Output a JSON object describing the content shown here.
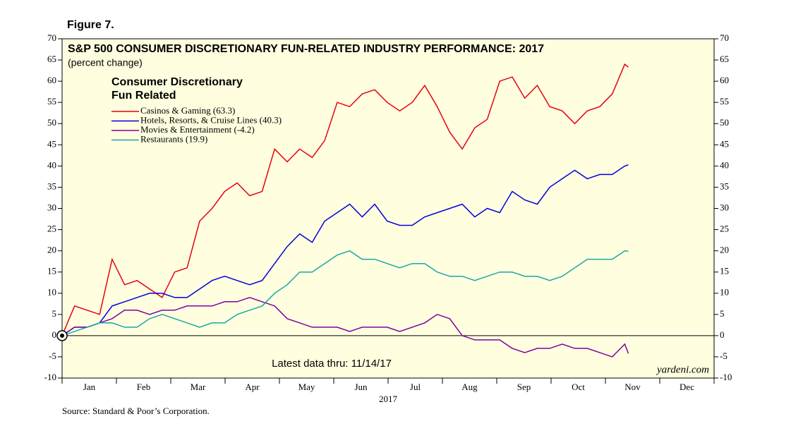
{
  "chart_data": {
    "type": "line",
    "figure_label": "Figure 7.",
    "title": "S&P 500 CONSUMER DISCRETIONARY FUN-RELATED INDUSTRY PERFORMANCE: 2017",
    "subtitle": "(percent change)",
    "legend_title": [
      "Consumer Discretionary",
      "Fun Related"
    ],
    "annotation": "Latest data thru: 11/14/17",
    "brand": "yardeni.com",
    "x_label": "2017",
    "source": "Source: Standard & Poor’s Corporation.",
    "categories": [
      "Jan",
      "Feb",
      "Mar",
      "Apr",
      "May",
      "Jun",
      "Jul",
      "Aug",
      "Sep",
      "Oct",
      "Nov",
      "Dec"
    ],
    "xlim": [
      0,
      365
    ],
    "x": [
      0,
      7,
      14,
      21,
      28,
      35,
      42,
      49,
      56,
      63,
      70,
      77,
      84,
      91,
      98,
      105,
      112,
      119,
      126,
      133,
      140,
      147,
      154,
      161,
      168,
      175,
      182,
      189,
      196,
      203,
      210,
      217,
      224,
      231,
      238,
      245,
      252,
      259,
      266,
      273,
      280,
      287,
      294,
      301,
      308,
      315,
      317
    ],
    "ylim": [
      -10,
      70
    ],
    "yticks": [
      -10,
      -5,
      0,
      5,
      10,
      15,
      20,
      25,
      30,
      35,
      40,
      45,
      50,
      55,
      60,
      65,
      70
    ],
    "series": [
      {
        "name": "Casinos & Gaming (63.3)",
        "color": "#e8000b",
        "values": [
          0,
          7,
          6,
          5,
          18,
          12,
          13,
          11,
          9,
          15,
          16,
          27,
          30,
          34,
          36,
          33,
          34,
          44,
          41,
          44,
          42,
          46,
          55,
          54,
          57,
          58,
          55,
          53,
          55,
          59,
          54,
          48,
          44,
          49,
          51,
          60,
          61,
          56,
          59,
          54,
          53,
          50,
          53,
          54,
          57,
          64,
          63.3
        ]
      },
      {
        "name": "Hotels, Resorts, & Cruise Lines (40.3)",
        "color": "#0000e0",
        "values": [
          0,
          2,
          2,
          3,
          7,
          8,
          9,
          10,
          10,
          9,
          9,
          11,
          13,
          14,
          13,
          12,
          13,
          17,
          21,
          24,
          22,
          27,
          29,
          31,
          28,
          31,
          27,
          26,
          26,
          28,
          29,
          30,
          31,
          28,
          30,
          29,
          34,
          32,
          31,
          35,
          37,
          39,
          37,
          38,
          38,
          40,
          40.3
        ]
      },
      {
        "name": "Movies & Entertainment (-4.2)",
        "color": "#8000a0",
        "values": [
          0,
          2,
          2,
          3,
          4,
          6,
          6,
          5,
          6,
          6,
          7,
          7,
          7,
          8,
          8,
          9,
          8,
          7,
          4,
          3,
          2,
          2,
          2,
          1,
          2,
          2,
          2,
          1,
          2,
          3,
          5,
          4,
          0,
          -1,
          -1,
          -1,
          -3,
          -4,
          -3,
          -3,
          -2,
          -3,
          -3,
          -4,
          -5,
          -2,
          -4.2
        ]
      },
      {
        "name": "Restaurants (19.9)",
        "color": "#1aa6a6",
        "values": [
          0,
          1,
          2,
          3,
          3,
          2,
          2,
          4,
          5,
          4,
          3,
          2,
          3,
          3,
          5,
          6,
          7,
          10,
          12,
          15,
          15,
          17,
          19,
          20,
          18,
          18,
          17,
          16,
          17,
          17,
          15,
          14,
          14,
          13,
          14,
          15,
          15,
          14,
          14,
          13,
          14,
          16,
          18,
          18,
          18,
          20,
          19.9
        ]
      }
    ]
  }
}
